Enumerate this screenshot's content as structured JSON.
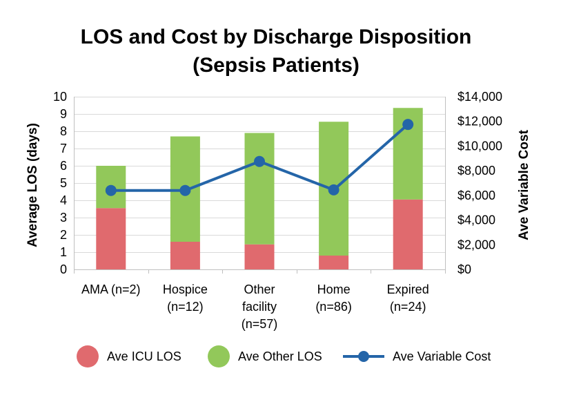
{
  "chart_data": {
    "type": "bar",
    "stacked": true,
    "title": [
      "LOS and Cost by Discharge Disposition",
      "(Sepsis Patients)"
    ],
    "categories": [
      [
        "AMA (n=2)"
      ],
      [
        "Hospice",
        "(n=12)"
      ],
      [
        "Other",
        "facility",
        "(n=57)"
      ],
      [
        "Home",
        "(n=86)"
      ],
      [
        "Expired",
        "(n=24)"
      ]
    ],
    "ylabel": "Average LOS (days)",
    "y2label": "Ave Variable Cost",
    "ylim": [
      0,
      10
    ],
    "y2lim": [
      0,
      14000
    ],
    "yticks": [
      "0",
      "1",
      "2",
      "3",
      "4",
      "5",
      "6",
      "7",
      "8",
      "9",
      "10"
    ],
    "y2ticks": [
      "$0",
      "$2,000",
      "$4,000",
      "$6,000",
      "$8,000",
      "$10,000",
      "$12,000",
      "$14,000"
    ],
    "grid": true,
    "legend_position": "bottom",
    "series": [
      {
        "name": "Ave ICU LOS",
        "type": "bar",
        "axis": "left",
        "color": "#e06a6e",
        "values": [
          3.55,
          1.6,
          1.45,
          0.8,
          4.05
        ]
      },
      {
        "name": "Ave Other LOS",
        "type": "bar",
        "axis": "left",
        "color": "#92c85a",
        "values": [
          2.45,
          6.1,
          6.45,
          7.75,
          5.3
        ]
      },
      {
        "name": "Ave Variable Cost",
        "type": "line",
        "axis": "right",
        "color": "#2465a8",
        "values": [
          6400,
          6400,
          8750,
          6450,
          11750
        ]
      }
    ]
  }
}
